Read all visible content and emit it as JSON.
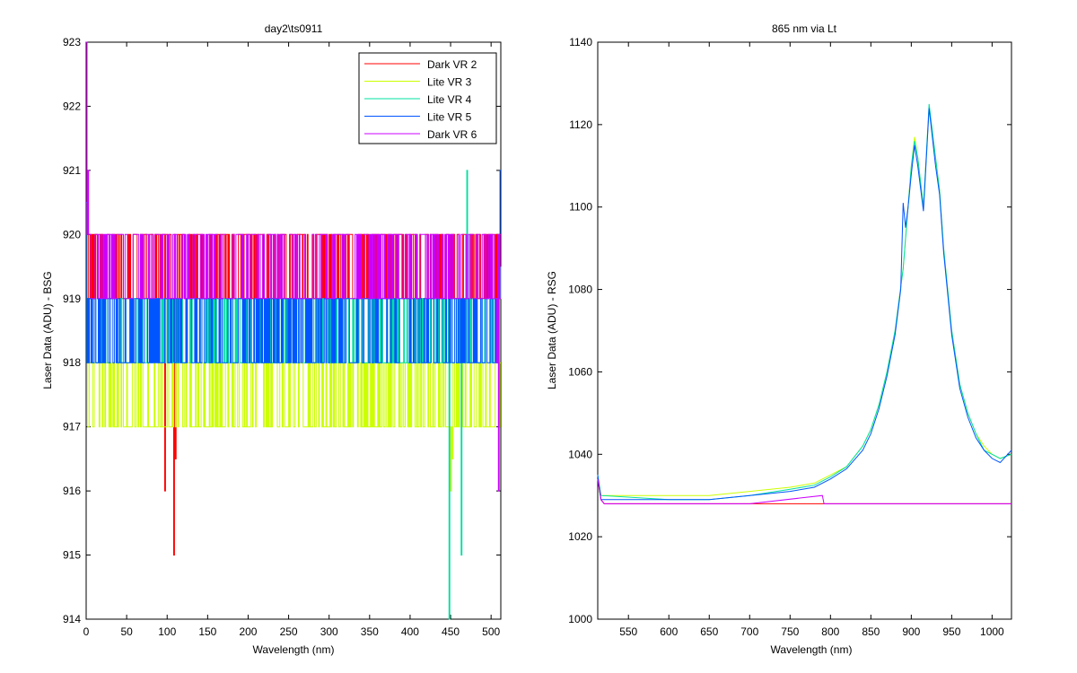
{
  "chart_data": [
    {
      "type": "line",
      "title": "day2\\ts0911",
      "xlabel": "Wavelength (nm)",
      "ylabel": "Laser Data (ADU) - BSG",
      "xlim": [
        0,
        512
      ],
      "ylim": [
        914,
        923
      ],
      "xticks": [
        0,
        50,
        100,
        150,
        200,
        250,
        300,
        350,
        400,
        450,
        500
      ],
      "yticks": [
        914,
        915,
        916,
        917,
        918,
        919,
        920,
        921,
        922,
        923
      ],
      "legend_position": "top-right",
      "grid": false,
      "series": [
        {
          "name": "Dark VR 2",
          "color": "#ff0000",
          "base": [
            919,
            920
          ],
          "points": [
            [
              0,
              923
            ],
            [
              3,
              920
            ],
            [
              97,
              916
            ],
            [
              100,
              918
            ],
            [
              105,
              918.5
            ],
            [
              108,
              915
            ],
            [
              110,
              916.5
            ],
            [
              112,
              918
            ],
            [
              115,
              919
            ]
          ]
        },
        {
          "name": "Lite VR 3",
          "color": "#ccff00",
          "base": [
            917,
            918
          ],
          "points": [
            [
              0,
              920.5
            ],
            [
              2,
              917
            ],
            [
              50,
              918
            ],
            [
              165,
              918
            ],
            [
              220,
              918
            ],
            [
              260,
              918
            ],
            [
              330,
              918
            ],
            [
              400,
              918
            ],
            [
              450,
              916
            ],
            [
              452,
              916.5
            ],
            [
              500,
              917
            ],
            [
              512,
              918
            ]
          ]
        },
        {
          "name": "Lite VR 4",
          "color": "#00e0a0",
          "base": [
            918,
            919
          ],
          "points": [
            [
              0,
              920.5
            ],
            [
              2,
              918
            ],
            [
              448,
              914
            ],
            [
              450,
              918
            ],
            [
              463,
              915
            ],
            [
              466,
              918
            ],
            [
              470,
              921
            ],
            [
              473,
              918
            ],
            [
              512,
              919.5
            ]
          ]
        },
        {
          "name": "Lite VR 5",
          "color": "#0055ff",
          "base": [
            918,
            919
          ],
          "points": [
            [
              0,
              920.5
            ],
            [
              2,
              919
            ],
            [
              505,
              919
            ],
            [
              510,
              920
            ],
            [
              511,
              921
            ],
            [
              512,
              921
            ]
          ]
        },
        {
          "name": "Dark VR 6",
          "color": "#cc00ff",
          "base": [
            919,
            920
          ],
          "points": [
            [
              0,
              923
            ],
            [
              2,
              921
            ],
            [
              4,
              920
            ],
            [
              505,
              919
            ],
            [
              507,
              918
            ],
            [
              509,
              916
            ],
            [
              512,
              919
            ]
          ]
        }
      ]
    },
    {
      "type": "line",
      "title": "865 nm via Lt",
      "xlabel": "Wavelength (nm)",
      "ylabel": "Laser Data (ADU) - RSG",
      "xlim": [
        512,
        1024
      ],
      "ylim": [
        1000,
        1140
      ],
      "xticks": [
        550,
        600,
        650,
        700,
        750,
        800,
        850,
        900,
        950,
        1000
      ],
      "yticks": [
        1000,
        1020,
        1040,
        1060,
        1080,
        1100,
        1120,
        1140
      ],
      "grid": false,
      "series": [
        {
          "color": "#ff0000",
          "points": [
            [
              512,
              1034
            ],
            [
              516,
              1029
            ],
            [
              520,
              1028
            ],
            [
              600,
              1028
            ],
            [
              700,
              1028
            ],
            [
              800,
              1028
            ],
            [
              900,
              1028
            ],
            [
              1000,
              1028
            ],
            [
              1024,
              1028
            ]
          ]
        },
        {
          "color": "#ccff00",
          "points": [
            [
              512,
              1035
            ],
            [
              516,
              1030
            ],
            [
              600,
              1030
            ],
            [
              650,
              1030
            ],
            [
              700,
              1031
            ],
            [
              750,
              1032
            ],
            [
              780,
              1033
            ],
            [
              800,
              1035
            ],
            [
              820,
              1037
            ],
            [
              840,
              1042
            ],
            [
              850,
              1046
            ],
            [
              860,
              1052
            ],
            [
              870,
              1060
            ],
            [
              880,
              1070
            ],
            [
              890,
              1085
            ],
            [
              900,
              1110
            ],
            [
              904,
              1117
            ],
            [
              908,
              1112
            ],
            [
              915,
              1100
            ],
            [
              922,
              1124
            ],
            [
              930,
              1112
            ],
            [
              935,
              1104
            ],
            [
              940,
              1090
            ],
            [
              950,
              1070
            ],
            [
              960,
              1057
            ],
            [
              970,
              1050
            ],
            [
              980,
              1045
            ],
            [
              990,
              1042
            ],
            [
              1000,
              1040
            ],
            [
              1010,
              1039
            ],
            [
              1024,
              1040
            ]
          ]
        },
        {
          "color": "#00e0a0",
          "points": [
            [
              512,
              1035
            ],
            [
              516,
              1030
            ],
            [
              600,
              1029
            ],
            [
              650,
              1029
            ],
            [
              700,
              1030
            ],
            [
              750,
              1031.5
            ],
            [
              780,
              1032.5
            ],
            [
              800,
              1034.5
            ],
            [
              820,
              1037
            ],
            [
              840,
              1042
            ],
            [
              850,
              1046
            ],
            [
              860,
              1052
            ],
            [
              870,
              1060
            ],
            [
              880,
              1070
            ],
            [
              890,
              1085
            ],
            [
              900,
              1110
            ],
            [
              904,
              1116
            ],
            [
              908,
              1112
            ],
            [
              915,
              1100
            ],
            [
              922,
              1125
            ],
            [
              930,
              1112
            ],
            [
              935,
              1104
            ],
            [
              940,
              1090
            ],
            [
              950,
              1070
            ],
            [
              960,
              1057
            ],
            [
              970,
              1050
            ],
            [
              980,
              1045
            ],
            [
              990,
              1041
            ],
            [
              1000,
              1040
            ],
            [
              1010,
              1039
            ],
            [
              1024,
              1040
            ]
          ]
        },
        {
          "color": "#0055ff",
          "points": [
            [
              512,
              1035
            ],
            [
              516,
              1029
            ],
            [
              600,
              1029
            ],
            [
              650,
              1029
            ],
            [
              700,
              1030
            ],
            [
              750,
              1031
            ],
            [
              780,
              1032
            ],
            [
              800,
              1034
            ],
            [
              820,
              1036.5
            ],
            [
              840,
              1041
            ],
            [
              850,
              1045
            ],
            [
              860,
              1051
            ],
            [
              870,
              1059
            ],
            [
              880,
              1069
            ],
            [
              887,
              1080
            ],
            [
              890,
              1101
            ],
            [
              893,
              1095
            ],
            [
              896,
              1100
            ],
            [
              900,
              1108
            ],
            [
              904,
              1115
            ],
            [
              908,
              1110
            ],
            [
              915,
              1099
            ],
            [
              922,
              1124
            ],
            [
              930,
              1110
            ],
            [
              935,
              1103
            ],
            [
              940,
              1089
            ],
            [
              950,
              1069
            ],
            [
              960,
              1056
            ],
            [
              970,
              1049
            ],
            [
              980,
              1044
            ],
            [
              990,
              1041
            ],
            [
              1000,
              1039
            ],
            [
              1010,
              1038
            ],
            [
              1024,
              1041
            ]
          ]
        },
        {
          "color": "#cc00ff",
          "points": [
            [
              512,
              1034
            ],
            [
              516,
              1029
            ],
            [
              520,
              1028
            ],
            [
              600,
              1028
            ],
            [
              700,
              1028
            ],
            [
              790,
              1030
            ],
            [
              792,
              1028
            ],
            [
              800,
              1028
            ],
            [
              900,
              1028
            ],
            [
              1000,
              1028
            ],
            [
              1024,
              1028
            ]
          ]
        }
      ]
    }
  ]
}
